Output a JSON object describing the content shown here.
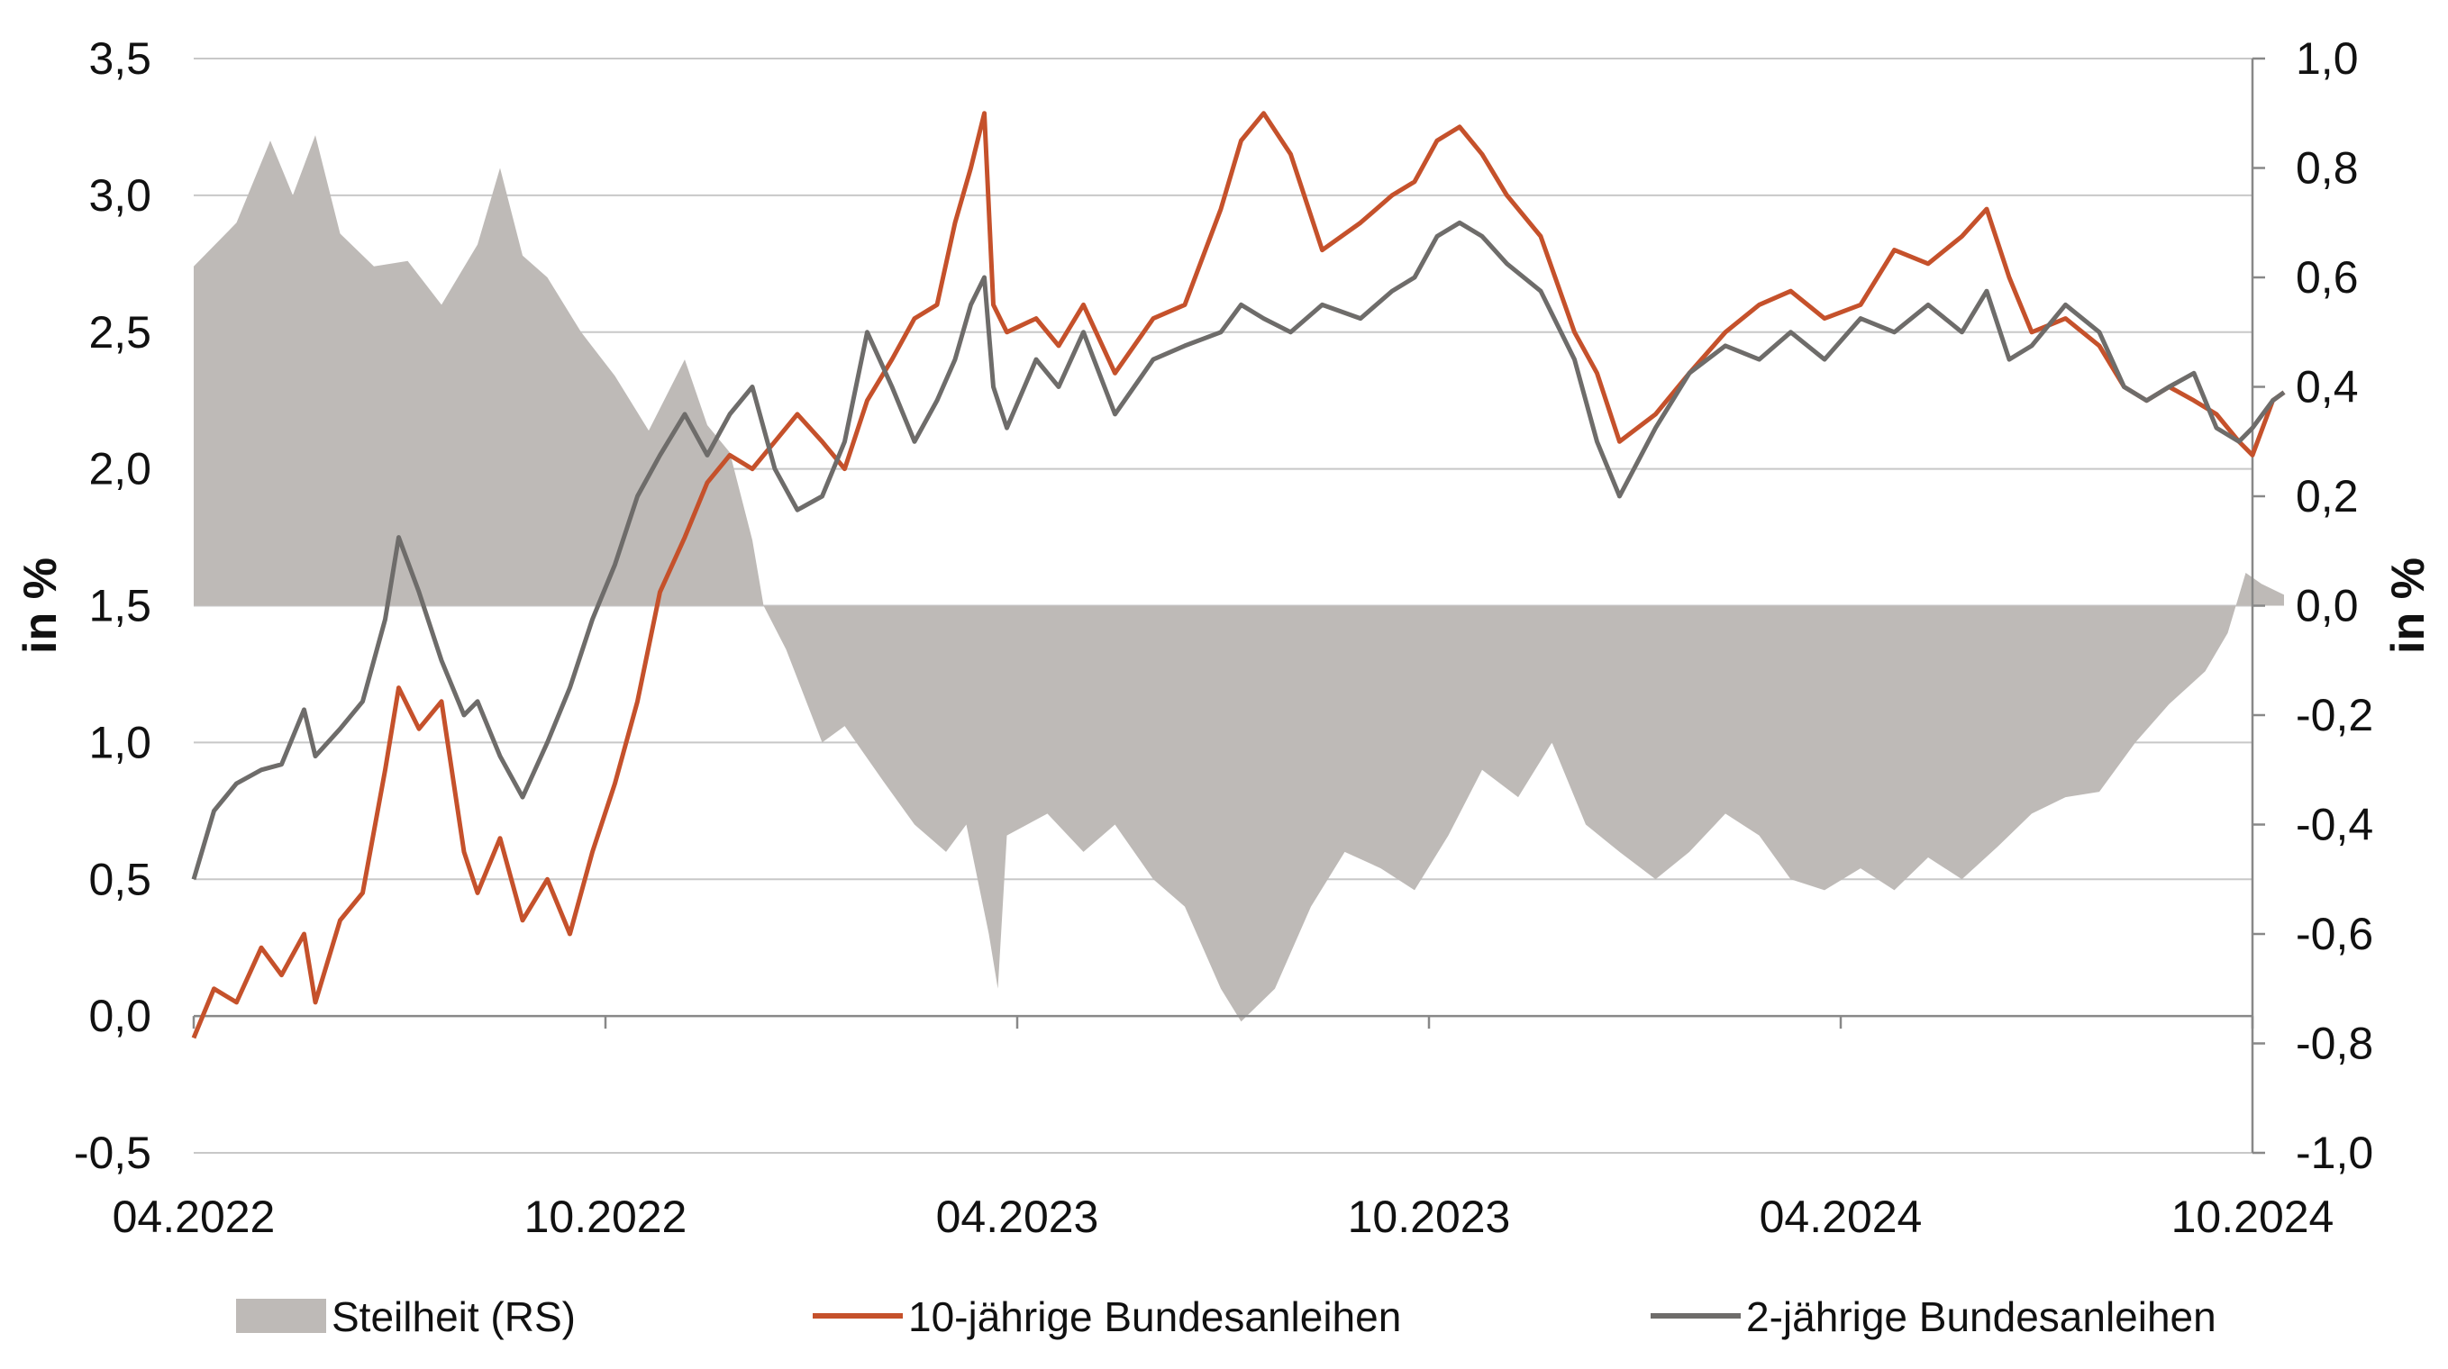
{
  "chart_data": {
    "type": "line",
    "left_axis": {
      "label": "in %",
      "ylim": [
        -0.5,
        3.5
      ],
      "ticks": [
        "-0,5",
        "0,0",
        "0,5",
        "1,0",
        "1,5",
        "2,0",
        "2,5",
        "3,0",
        "3,5"
      ]
    },
    "right_axis": {
      "label": "in %",
      "ylim": [
        -1.0,
        1.0
      ],
      "ticks": [
        "-1,0",
        "-0,8",
        "-0,6",
        "-0,4",
        "-0,2",
        "0,0",
        "0,2",
        "0,4",
        "0,6",
        "0,8",
        "1,0"
      ]
    },
    "x_axis": {
      "range": [
        "2022-04",
        "2024-10"
      ],
      "ticks": [
        "04.2022",
        "10.2022",
        "04.2023",
        "10.2023",
        "04.2024",
        "10.2024"
      ]
    },
    "grid": "horizontal",
    "legend_position": "bottom",
    "series": [
      {
        "name": "Steilheit (RS)",
        "kind": "area",
        "axis": "right",
        "color": "#bebab7",
        "points": [
          [
            "2022-04-01",
            0.62
          ],
          [
            "2022-04-20",
            0.7
          ],
          [
            "2022-05-05",
            0.85
          ],
          [
            "2022-05-15",
            0.75
          ],
          [
            "2022-05-25",
            0.86
          ],
          [
            "2022-06-05",
            0.68
          ],
          [
            "2022-06-20",
            0.62
          ],
          [
            "2022-07-05",
            0.63
          ],
          [
            "2022-07-20",
            0.55
          ],
          [
            "2022-08-05",
            0.66
          ],
          [
            "2022-08-15",
            0.8
          ],
          [
            "2022-08-25",
            0.64
          ],
          [
            "2022-09-05",
            0.6
          ],
          [
            "2022-09-20",
            0.5
          ],
          [
            "2022-10-05",
            0.42
          ],
          [
            "2022-10-20",
            0.32
          ],
          [
            "2022-11-05",
            0.45
          ],
          [
            "2022-11-15",
            0.33
          ],
          [
            "2022-11-25",
            0.28
          ],
          [
            "2022-12-05",
            0.12
          ],
          [
            "2022-12-10",
            0.0
          ],
          [
            "2022-12-20",
            -0.08
          ],
          [
            "2023-01-05",
            -0.25
          ],
          [
            "2023-01-15",
            -0.22
          ],
          [
            "2023-02-01",
            -0.32
          ],
          [
            "2023-02-15",
            -0.4
          ],
          [
            "2023-03-01",
            -0.45
          ],
          [
            "2023-03-10",
            -0.4
          ],
          [
            "2023-03-20",
            -0.6
          ],
          [
            "2023-03-24",
            -0.7
          ],
          [
            "2023-03-28",
            -0.42
          ],
          [
            "2023-04-15",
            -0.38
          ],
          [
            "2023-05-01",
            -0.45
          ],
          [
            "2023-05-15",
            -0.4
          ],
          [
            "2023-06-01",
            -0.5
          ],
          [
            "2023-06-15",
            -0.55
          ],
          [
            "2023-07-01",
            -0.7
          ],
          [
            "2023-07-10",
            -0.76
          ],
          [
            "2023-07-25",
            -0.7
          ],
          [
            "2023-08-10",
            -0.55
          ],
          [
            "2023-08-25",
            -0.45
          ],
          [
            "2023-09-10",
            -0.48
          ],
          [
            "2023-09-25",
            -0.52
          ],
          [
            "2023-10-10",
            -0.42
          ],
          [
            "2023-10-25",
            -0.3
          ],
          [
            "2023-11-10",
            -0.35
          ],
          [
            "2023-11-25",
            -0.25
          ],
          [
            "2023-12-10",
            -0.4
          ],
          [
            "2023-12-25",
            -0.45
          ],
          [
            "2024-01-10",
            -0.5
          ],
          [
            "2024-01-25",
            -0.45
          ],
          [
            "2024-02-10",
            -0.38
          ],
          [
            "2024-02-25",
            -0.42
          ],
          [
            "2024-03-10",
            -0.5
          ],
          [
            "2024-03-25",
            -0.52
          ],
          [
            "2024-04-10",
            -0.48
          ],
          [
            "2024-04-25",
            -0.52
          ],
          [
            "2024-05-10",
            -0.46
          ],
          [
            "2024-05-25",
            -0.5
          ],
          [
            "2024-06-10",
            -0.44
          ],
          [
            "2024-06-25",
            -0.38
          ],
          [
            "2024-07-10",
            -0.35
          ],
          [
            "2024-07-25",
            -0.34
          ],
          [
            "2024-08-10",
            -0.25
          ],
          [
            "2024-08-25",
            -0.18
          ],
          [
            "2024-09-10",
            -0.12
          ],
          [
            "2024-09-20",
            -0.05
          ],
          [
            "2024-09-28",
            0.06
          ],
          [
            "2024-10-05",
            0.04
          ],
          [
            "2024-10-15",
            0.02
          ]
        ]
      },
      {
        "name": "10-jährige Bundesanleihen",
        "kind": "line",
        "axis": "left",
        "color": "#c5512b",
        "points": [
          [
            "2022-04-01",
            -0.08
          ],
          [
            "2022-04-10",
            0.1
          ],
          [
            "2022-04-20",
            0.05
          ],
          [
            "2022-05-01",
            0.25
          ],
          [
            "2022-05-10",
            0.15
          ],
          [
            "2022-05-20",
            0.3
          ],
          [
            "2022-05-25",
            0.05
          ],
          [
            "2022-06-05",
            0.35
          ],
          [
            "2022-06-15",
            0.45
          ],
          [
            "2022-06-25",
            0.9
          ],
          [
            "2022-07-01",
            1.2
          ],
          [
            "2022-07-10",
            1.05
          ],
          [
            "2022-07-20",
            1.15
          ],
          [
            "2022-07-30",
            0.6
          ],
          [
            "2022-08-05",
            0.45
          ],
          [
            "2022-08-15",
            0.65
          ],
          [
            "2022-08-25",
            0.35
          ],
          [
            "2022-09-05",
            0.5
          ],
          [
            "2022-09-15",
            0.3
          ],
          [
            "2022-09-25",
            0.6
          ],
          [
            "2022-10-05",
            0.85
          ],
          [
            "2022-10-15",
            1.15
          ],
          [
            "2022-10-25",
            1.55
          ],
          [
            "2022-11-05",
            1.75
          ],
          [
            "2022-11-15",
            1.95
          ],
          [
            "2022-11-25",
            2.05
          ],
          [
            "2022-12-05",
            2.0
          ],
          [
            "2022-12-15",
            2.1
          ],
          [
            "2022-12-25",
            2.2
          ],
          [
            "2023-01-05",
            2.1
          ],
          [
            "2023-01-15",
            2.0
          ],
          [
            "2023-01-25",
            2.25
          ],
          [
            "2023-02-05",
            2.4
          ],
          [
            "2023-02-15",
            2.55
          ],
          [
            "2023-02-25",
            2.6
          ],
          [
            "2023-03-05",
            2.9
          ],
          [
            "2023-03-12",
            3.1
          ],
          [
            "2023-03-18",
            3.3
          ],
          [
            "2023-03-22",
            2.6
          ],
          [
            "2023-03-28",
            2.5
          ],
          [
            "2023-04-10",
            2.55
          ],
          [
            "2023-04-20",
            2.45
          ],
          [
            "2023-05-01",
            2.6
          ],
          [
            "2023-05-15",
            2.35
          ],
          [
            "2023-06-01",
            2.55
          ],
          [
            "2023-06-15",
            2.6
          ],
          [
            "2023-07-01",
            2.95
          ],
          [
            "2023-07-10",
            3.2
          ],
          [
            "2023-07-20",
            3.3
          ],
          [
            "2023-08-01",
            3.15
          ],
          [
            "2023-08-15",
            2.8
          ],
          [
            "2023-09-01",
            2.9
          ],
          [
            "2023-09-15",
            3.0
          ],
          [
            "2023-09-25",
            3.05
          ],
          [
            "2023-10-05",
            3.2
          ],
          [
            "2023-10-15",
            3.25
          ],
          [
            "2023-10-25",
            3.15
          ],
          [
            "2023-11-05",
            3.0
          ],
          [
            "2023-11-20",
            2.85
          ],
          [
            "2023-12-05",
            2.5
          ],
          [
            "2023-12-15",
            2.35
          ],
          [
            "2023-12-25",
            2.1
          ],
          [
            "2024-01-10",
            2.2
          ],
          [
            "2024-01-25",
            2.35
          ],
          [
            "2024-02-10",
            2.5
          ],
          [
            "2024-02-25",
            2.6
          ],
          [
            "2024-03-10",
            2.65
          ],
          [
            "2024-03-25",
            2.55
          ],
          [
            "2024-04-10",
            2.6
          ],
          [
            "2024-04-25",
            2.8
          ],
          [
            "2024-05-10",
            2.75
          ],
          [
            "2024-05-25",
            2.85
          ],
          [
            "2024-06-05",
            2.95
          ],
          [
            "2024-06-15",
            2.7
          ],
          [
            "2024-06-25",
            2.5
          ],
          [
            "2024-07-10",
            2.55
          ],
          [
            "2024-07-25",
            2.45
          ],
          [
            "2024-08-05",
            2.3
          ],
          [
            "2024-08-15",
            2.25
          ],
          [
            "2024-08-25",
            2.3
          ],
          [
            "2024-09-05",
            2.25
          ],
          [
            "2024-09-15",
            2.2
          ],
          [
            "2024-09-25",
            2.1
          ],
          [
            "2024-10-01",
            2.05
          ],
          [
            "2024-10-10",
            2.25
          ],
          [
            "2024-10-15",
            2.28
          ]
        ]
      },
      {
        "name": "2-jährige Bundesanleihen",
        "kind": "line",
        "axis": "left",
        "color": "#6e6c6a",
        "points": [
          [
            "2022-04-01",
            0.5
          ],
          [
            "2022-04-10",
            0.75
          ],
          [
            "2022-04-20",
            0.85
          ],
          [
            "2022-05-01",
            0.9
          ],
          [
            "2022-05-10",
            0.92
          ],
          [
            "2022-05-20",
            1.12
          ],
          [
            "2022-05-25",
            0.95
          ],
          [
            "2022-06-05",
            1.05
          ],
          [
            "2022-06-15",
            1.15
          ],
          [
            "2022-06-25",
            1.45
          ],
          [
            "2022-07-01",
            1.75
          ],
          [
            "2022-07-10",
            1.55
          ],
          [
            "2022-07-20",
            1.3
          ],
          [
            "2022-07-30",
            1.1
          ],
          [
            "2022-08-05",
            1.15
          ],
          [
            "2022-08-15",
            0.95
          ],
          [
            "2022-08-25",
            0.8
          ],
          [
            "2022-09-05",
            1.0
          ],
          [
            "2022-09-15",
            1.2
          ],
          [
            "2022-09-25",
            1.45
          ],
          [
            "2022-10-05",
            1.65
          ],
          [
            "2022-10-15",
            1.9
          ],
          [
            "2022-10-25",
            2.05
          ],
          [
            "2022-11-05",
            2.2
          ],
          [
            "2022-11-15",
            2.05
          ],
          [
            "2022-11-25",
            2.2
          ],
          [
            "2022-12-05",
            2.3
          ],
          [
            "2022-12-15",
            2.0
          ],
          [
            "2022-12-25",
            1.85
          ],
          [
            "2023-01-05",
            1.9
          ],
          [
            "2023-01-15",
            2.1
          ],
          [
            "2023-01-25",
            2.5
          ],
          [
            "2023-02-05",
            2.3
          ],
          [
            "2023-02-15",
            2.1
          ],
          [
            "2023-02-25",
            2.25
          ],
          [
            "2023-03-05",
            2.4
          ],
          [
            "2023-03-12",
            2.6
          ],
          [
            "2023-03-18",
            2.7
          ],
          [
            "2023-03-22",
            2.3
          ],
          [
            "2023-03-28",
            2.15
          ],
          [
            "2023-04-10",
            2.4
          ],
          [
            "2023-04-20",
            2.3
          ],
          [
            "2023-05-01",
            2.5
          ],
          [
            "2023-05-15",
            2.2
          ],
          [
            "2023-06-01",
            2.4
          ],
          [
            "2023-06-15",
            2.45
          ],
          [
            "2023-07-01",
            2.5
          ],
          [
            "2023-07-10",
            2.6
          ],
          [
            "2023-07-20",
            2.55
          ],
          [
            "2023-08-01",
            2.5
          ],
          [
            "2023-08-15",
            2.6
          ],
          [
            "2023-09-01",
            2.55
          ],
          [
            "2023-09-15",
            2.65
          ],
          [
            "2023-09-25",
            2.7
          ],
          [
            "2023-10-05",
            2.85
          ],
          [
            "2023-10-15",
            2.9
          ],
          [
            "2023-10-25",
            2.85
          ],
          [
            "2023-11-05",
            2.75
          ],
          [
            "2023-11-20",
            2.65
          ],
          [
            "2023-12-05",
            2.4
          ],
          [
            "2023-12-15",
            2.1
          ],
          [
            "2023-12-25",
            1.9
          ],
          [
            "2024-01-10",
            2.15
          ],
          [
            "2024-01-25",
            2.35
          ],
          [
            "2024-02-10",
            2.45
          ],
          [
            "2024-02-25",
            2.4
          ],
          [
            "2024-03-10",
            2.5
          ],
          [
            "2024-03-25",
            2.4
          ],
          [
            "2024-04-10",
            2.55
          ],
          [
            "2024-04-25",
            2.5
          ],
          [
            "2024-05-10",
            2.6
          ],
          [
            "2024-05-25",
            2.5
          ],
          [
            "2024-06-05",
            2.65
          ],
          [
            "2024-06-15",
            2.4
          ],
          [
            "2024-06-25",
            2.45
          ],
          [
            "2024-07-10",
            2.6
          ],
          [
            "2024-07-25",
            2.5
          ],
          [
            "2024-08-05",
            2.3
          ],
          [
            "2024-08-15",
            2.25
          ],
          [
            "2024-08-25",
            2.3
          ],
          [
            "2024-09-05",
            2.35
          ],
          [
            "2024-09-15",
            2.15
          ],
          [
            "2024-09-25",
            2.1
          ],
          [
            "2024-10-01",
            2.15
          ],
          [
            "2024-10-10",
            2.25
          ],
          [
            "2024-10-15",
            2.28
          ]
        ]
      }
    ]
  }
}
